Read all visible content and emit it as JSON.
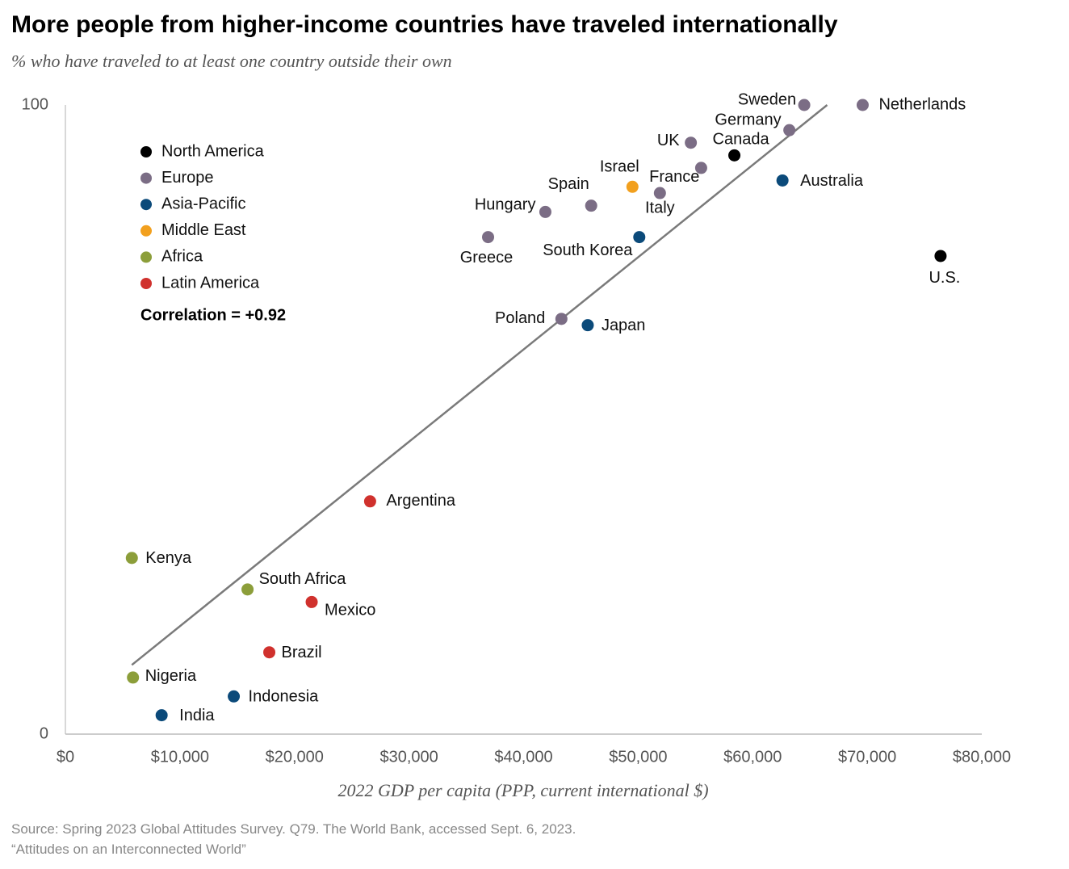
{
  "chart_data": {
    "type": "scatter",
    "title": "More people from higher-income countries have traveled internationally",
    "subtitle": "% who have traveled to at least one country outside their own",
    "x_label": "2022 GDP per capita (PPP, current international $)",
    "annotation": "Correlation = +0.92",
    "source": [
      "Source: Spring 2023 Global Attitudes Survey. Q79. The World Bank, accessed Sept. 6, 2023.",
      "“Attitudes on an Interconnected World”"
    ],
    "xlim": [
      0,
      80000
    ],
    "ylim": [
      0,
      100
    ],
    "xticks": [
      {
        "value": 0,
        "label": "$0"
      },
      {
        "value": 10000,
        "label": "$10,000"
      },
      {
        "value": 20000,
        "label": "$20,000"
      },
      {
        "value": 30000,
        "label": "$30,000"
      },
      {
        "value": 40000,
        "label": "$40,000"
      },
      {
        "value": 50000,
        "label": "$50,000"
      },
      {
        "value": 60000,
        "label": "$60,000"
      },
      {
        "value": 70000,
        "label": "$70,000"
      },
      {
        "value": 80000,
        "label": "$80,000"
      }
    ],
    "yticks": [
      0,
      100
    ],
    "trendline": {
      "x": [
        5800,
        66500
      ],
      "y": [
        11,
        100
      ],
      "color": "#7a7a7a"
    },
    "series": [
      {
        "name": "North America",
        "color": "#000000",
        "labels": [
          "Canada",
          "U.S."
        ],
        "x": [
          58400,
          76400
        ],
        "values": [
          92,
          76
        ]
      },
      {
        "name": "Europe",
        "color": "#7b6d85",
        "labels": [
          "Netherlands",
          "Sweden",
          "Germany",
          "UK",
          "France",
          "Italy",
          "Spain",
          "Hungary",
          "Greece",
          "Poland"
        ],
        "x": [
          69600,
          64500,
          63200,
          54600,
          55500,
          51900,
          45900,
          41900,
          36900,
          43300
        ],
        "values": [
          100,
          100,
          96,
          94,
          90,
          86,
          84,
          83,
          79,
          66
        ]
      },
      {
        "name": "Asia-Pacific",
        "color": "#0b4a7a",
        "labels": [
          "Australia",
          "South Korea",
          "Japan",
          "Indonesia",
          "India"
        ],
        "x": [
          62600,
          50100,
          45600,
          14700,
          8400
        ],
        "values": [
          88,
          79,
          65,
          6,
          3
        ]
      },
      {
        "name": "Middle East",
        "color": "#f2a01e",
        "labels": [
          "Israel"
        ],
        "x": [
          49500
        ],
        "values": [
          87
        ]
      },
      {
        "name": "Africa",
        "color": "#8c9e3a",
        "labels": [
          "Kenya",
          "South Africa",
          "Nigeria"
        ],
        "x": [
          5800,
          15900,
          5900
        ],
        "values": [
          28,
          23,
          9
        ]
      },
      {
        "name": "Latin America",
        "color": "#d0312d",
        "labels": [
          "Argentina",
          "Mexico",
          "Brazil"
        ],
        "x": [
          26600,
          21500,
          17800
        ],
        "values": [
          37,
          21,
          13
        ]
      }
    ]
  }
}
